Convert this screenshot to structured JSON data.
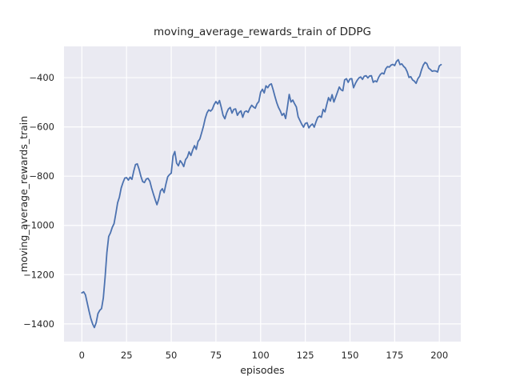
{
  "figure": {
    "title": "moving_average_rewards_train of DDPG",
    "xlabel": "episodes",
    "ylabel": "moving_average_rewards_train"
  },
  "colors": {
    "line": "#4C72B0",
    "plot_background": "#EAEAF2",
    "grid": "#FFFFFF",
    "text": "#262626",
    "figure_background": "#FFFFFF"
  },
  "chart_data": {
    "type": "line",
    "title": "moving_average_rewards_train of DDPG",
    "xlabel": "episodes",
    "ylabel": "moving_average_rewards_train",
    "xlim": [
      -10,
      212
    ],
    "ylim": [
      -1472,
      -273
    ],
    "xticks": [
      0,
      25,
      50,
      75,
      100,
      125,
      150,
      175,
      200
    ],
    "xtick_labels": [
      "0",
      "25",
      "50",
      "75",
      "100",
      "125",
      "150",
      "175",
      "200"
    ],
    "yticks": [
      -1400,
      -1200,
      -1000,
      -800,
      -600,
      -400
    ],
    "ytick_labels": [
      "−1400",
      "−1200",
      "−1000",
      "−800",
      "−600",
      "−400"
    ],
    "grid": true,
    "legend": false,
    "series": [
      {
        "name": "moving_average_rewards_train",
        "x": [
          0,
          1,
          2,
          3,
          4,
          5,
          6,
          7,
          8,
          9,
          10,
          11,
          12,
          13,
          14,
          15,
          16,
          17,
          18,
          19,
          20,
          21,
          22,
          23,
          24,
          25,
          26,
          27,
          28,
          29,
          30,
          31,
          32,
          33,
          34,
          35,
          36,
          37,
          38,
          39,
          40,
          41,
          42,
          43,
          44,
          45,
          46,
          47,
          48,
          49,
          50,
          51,
          52,
          53,
          54,
          55,
          56,
          57,
          58,
          59,
          60,
          61,
          62,
          63,
          64,
          65,
          66,
          67,
          68,
          69,
          70,
          71,
          72,
          73,
          74,
          75,
          76,
          77,
          78,
          79,
          80,
          81,
          82,
          83,
          84,
          85,
          86,
          87,
          88,
          89,
          90,
          91,
          92,
          93,
          94,
          95,
          96,
          97,
          98,
          99,
          100,
          101,
          102,
          103,
          104,
          105,
          106,
          107,
          108,
          109,
          110,
          111,
          112,
          113,
          114,
          115,
          116,
          117,
          118,
          119,
          120,
          121,
          122,
          123,
          124,
          125,
          126,
          127,
          128,
          129,
          130,
          131,
          132,
          133,
          134,
          135,
          136,
          137,
          138,
          139,
          140,
          141,
          142,
          143,
          144,
          145,
          146,
          147,
          148,
          149,
          150,
          151,
          152,
          153,
          154,
          155,
          156,
          157,
          158,
          159,
          160,
          161,
          162,
          163,
          164,
          165,
          166,
          167,
          168,
          169,
          170,
          171,
          172,
          173,
          174,
          175,
          176,
          177,
          178,
          179,
          180,
          181,
          182,
          183,
          184,
          185,
          186,
          187,
          188,
          189,
          190,
          191,
          192,
          193,
          194,
          195,
          196,
          197,
          198,
          199,
          200,
          201
        ],
        "y": [
          -1274,
          -1270,
          -1282,
          -1315,
          -1348,
          -1378,
          -1400,
          -1415,
          -1395,
          -1358,
          -1345,
          -1338,
          -1295,
          -1210,
          -1110,
          -1045,
          -1030,
          -1008,
          -993,
          -952,
          -908,
          -885,
          -848,
          -826,
          -808,
          -806,
          -816,
          -804,
          -813,
          -780,
          -753,
          -750,
          -772,
          -800,
          -822,
          -826,
          -812,
          -809,
          -820,
          -848,
          -872,
          -895,
          -916,
          -893,
          -860,
          -851,
          -867,
          -833,
          -803,
          -794,
          -788,
          -718,
          -700,
          -747,
          -758,
          -737,
          -747,
          -761,
          -733,
          -723,
          -701,
          -716,
          -694,
          -676,
          -691,
          -659,
          -649,
          -624,
          -598,
          -566,
          -543,
          -531,
          -536,
          -528,
          -509,
          -497,
          -507,
          -493,
          -521,
          -553,
          -567,
          -543,
          -527,
          -521,
          -544,
          -529,
          -527,
          -553,
          -541,
          -535,
          -561,
          -539,
          -535,
          -541,
          -524,
          -512,
          -519,
          -524,
          -506,
          -497,
          -459,
          -447,
          -462,
          -433,
          -441,
          -429,
          -425,
          -449,
          -476,
          -501,
          -521,
          -535,
          -553,
          -545,
          -566,
          -519,
          -468,
          -499,
          -491,
          -506,
          -519,
          -559,
          -574,
          -589,
          -601,
          -586,
          -583,
          -604,
          -594,
          -588,
          -601,
          -579,
          -561,
          -556,
          -561,
          -529,
          -539,
          -509,
          -481,
          -495,
          -469,
          -499,
          -479,
          -459,
          -438,
          -449,
          -453,
          -409,
          -404,
          -419,
          -405,
          -404,
          -441,
          -424,
          -411,
          -401,
          -397,
          -407,
          -394,
          -392,
          -401,
          -393,
          -392,
          -419,
          -413,
          -417,
          -399,
          -387,
          -381,
          -385,
          -364,
          -355,
          -357,
          -349,
          -346,
          -351,
          -334,
          -327,
          -347,
          -344,
          -354,
          -361,
          -376,
          -399,
          -396,
          -409,
          -414,
          -423,
          -404,
          -394,
          -369,
          -349,
          -338,
          -343,
          -361,
          -367,
          -374,
          -372,
          -373,
          -377,
          -352,
          -347
        ]
      }
    ]
  }
}
